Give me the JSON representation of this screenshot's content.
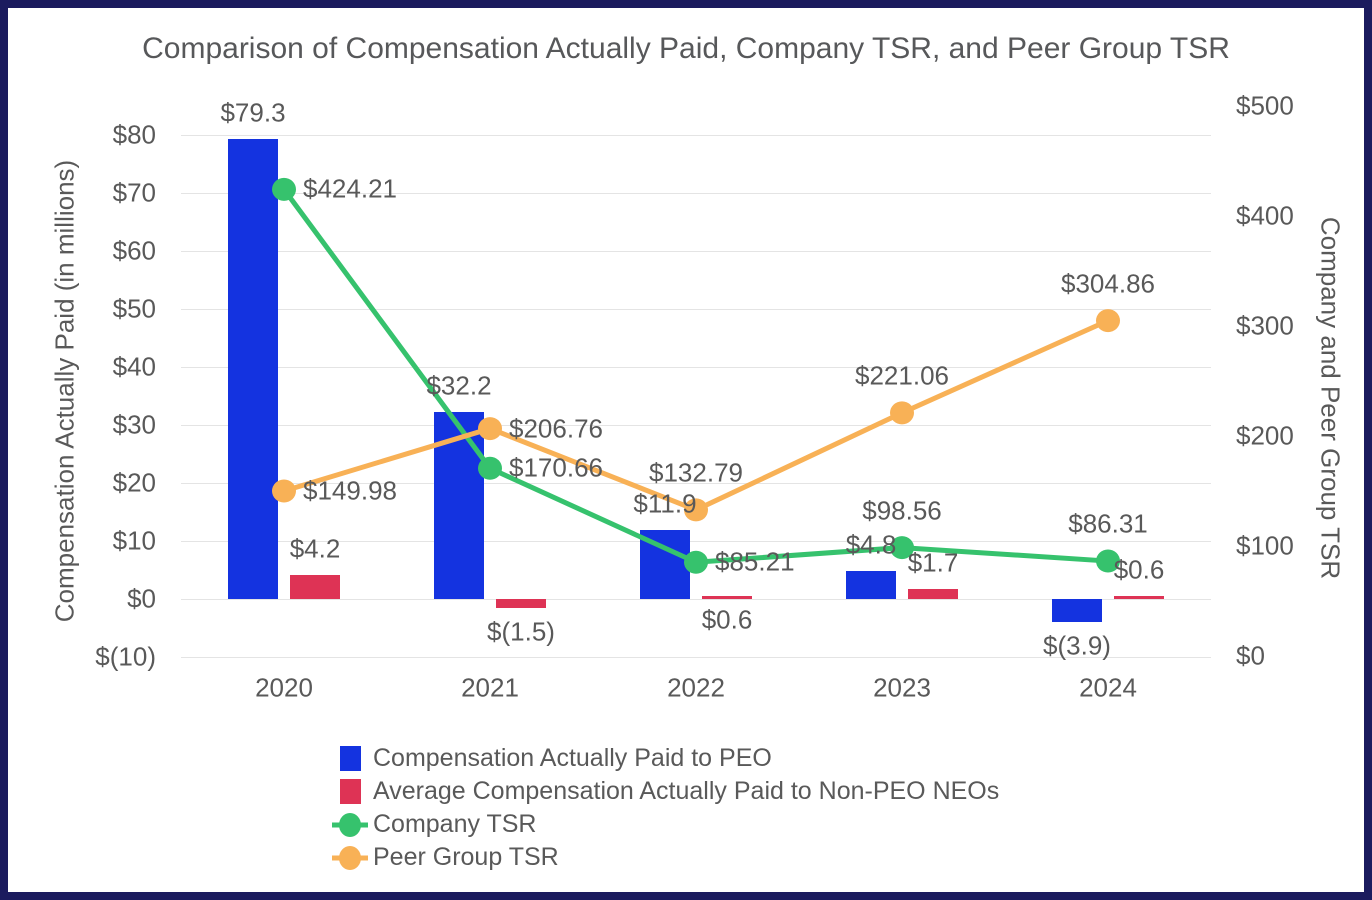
{
  "title": "Comparison of Compensation Actually Paid, Company TSR, and Peer Group TSR",
  "frame": {
    "border_color": "#1b1b5e",
    "background_color": "#ffffff"
  },
  "colors": {
    "peo_bar": "#1433e0",
    "neo_bar": "#de3355",
    "company_tsr": "#36c26d",
    "peer_group_tsr": "#f8b156",
    "text": "#595959",
    "gridline": "#e4e4e4"
  },
  "chart_data": {
    "type": "combo-bar-line",
    "categories": [
      "2020",
      "2021",
      "2022",
      "2023",
      "2024"
    ],
    "grid": true,
    "legend_position": "bottom-left",
    "left_axis": {
      "title": "Compensation Actually Paid (in millions)",
      "min": -10,
      "max": 80,
      "tick_values": [
        80,
        70,
        60,
        50,
        40,
        30,
        20,
        10,
        0,
        -10
      ],
      "tick_labels": [
        "$80",
        "$70",
        "$60",
        "$50",
        "$40",
        "$30",
        "$20",
        "$10",
        "$0",
        "$(10)"
      ]
    },
    "right_axis": {
      "title": "Company and Peer Group TSR",
      "min": 0,
      "max": 500,
      "tick_values": [
        500,
        400,
        300,
        200,
        100,
        0
      ],
      "tick_labels": [
        "$500",
        "$400",
        "$300",
        "$200",
        "$100",
        "$0"
      ]
    },
    "series": [
      {
        "name": "Compensation Actually Paid to PEO",
        "type": "bar",
        "axis": "left",
        "color_key": "peo_bar",
        "values": [
          79.3,
          32.2,
          11.9,
          4.8,
          -3.9
        ],
        "labels": [
          "$79.3",
          "$32.2",
          "$11.9",
          "$4.8",
          "$(3.9)"
        ],
        "label_positions": [
          "above",
          "above",
          "above",
          "above",
          "below"
        ]
      },
      {
        "name": "Average Compensation Actually Paid to Non-PEO NEOs",
        "type": "bar",
        "axis": "left",
        "color_key": "neo_bar",
        "values": [
          4.2,
          -1.5,
          0.6,
          1.7,
          0.6
        ],
        "labels": [
          "$4.2",
          "$(1.5)",
          "$0.6",
          "$1.7",
          "$0.6"
        ],
        "label_positions": [
          "above",
          "below",
          "below_axis",
          "above",
          "above"
        ]
      },
      {
        "name": "Company TSR",
        "type": "line",
        "axis": "right",
        "color_key": "company_tsr",
        "values": [
          424.21,
          170.66,
          85.21,
          98.56,
          86.31
        ],
        "labels": [
          "$424.21",
          "$170.66",
          "$85.21",
          "$98.56",
          "$86.31"
        ],
        "label_positions": [
          "right",
          "right",
          "right",
          "above",
          "above"
        ]
      },
      {
        "name": "Peer Group TSR",
        "type": "line",
        "axis": "right",
        "color_key": "peer_group_tsr",
        "values": [
          149.98,
          206.76,
          132.79,
          221.06,
          304.86
        ],
        "labels": [
          "$149.98",
          "$206.76",
          "$132.79",
          "$221.06",
          "$304.86"
        ],
        "label_positions": [
          "right",
          "right",
          "above",
          "above",
          "above"
        ]
      }
    ]
  },
  "legend": {
    "items": [
      {
        "label": "Compensation Actually Paid to PEO",
        "swatch": "rect",
        "color_key": "peo_bar"
      },
      {
        "label": "Average Compensation Actually Paid to Non-PEO NEOs",
        "swatch": "rect",
        "color_key": "neo_bar"
      },
      {
        "label": "Company TSR",
        "swatch": "line-marker",
        "color_key": "company_tsr"
      },
      {
        "label": "Peer Group TSR",
        "swatch": "line-marker",
        "color_key": "peer_group_tsr"
      }
    ]
  }
}
